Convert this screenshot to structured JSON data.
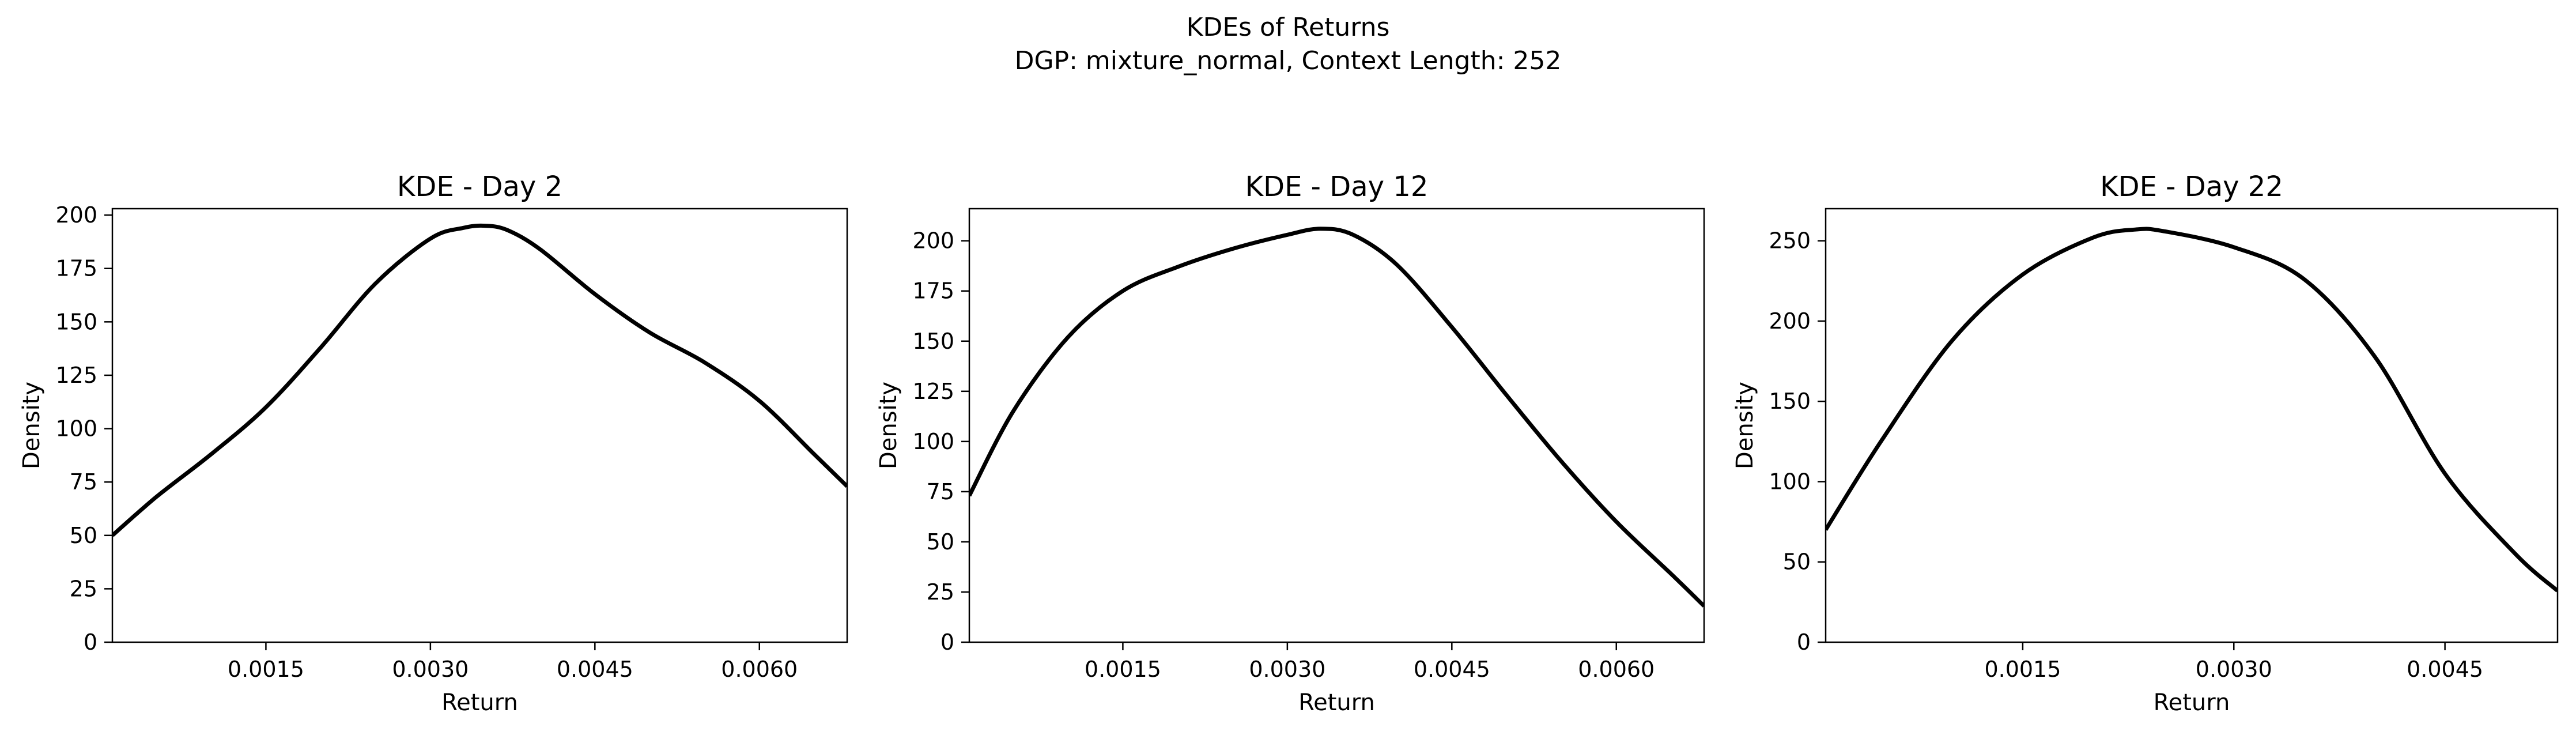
{
  "figure": {
    "title_line1": "KDEs of Returns",
    "title_line2": "DGP: mixture_normal, Context Length: 252"
  },
  "chart_data": [
    {
      "type": "line",
      "title": "KDE - Day 2",
      "xlabel": "Return",
      "ylabel": "Density",
      "xlim": [
        0.0001,
        0.0068
      ],
      "ylim": [
        0,
        203
      ],
      "xticks": [
        0.0015,
        0.003,
        0.0045,
        0.006
      ],
      "xtick_labels": [
        "0.0015",
        "0.0030",
        "0.0045",
        "0.0060"
      ],
      "yticks": [
        0,
        25,
        50,
        75,
        100,
        125,
        150,
        175,
        200
      ],
      "ytick_labels": [
        "0",
        "25",
        "50",
        "75",
        "100",
        "125",
        "150",
        "175",
        "200"
      ],
      "grid": false,
      "color": "#000000",
      "series": [
        {
          "x": [
            0.0001,
            0.0005,
            0.001,
            0.0015,
            0.002,
            0.0025,
            0.003,
            0.0033,
            0.0035,
            0.0037,
            0.004,
            0.0045,
            0.005,
            0.0055,
            0.006,
            0.0065,
            0.0068
          ],
          "y": [
            50,
            68,
            88,
            110,
            138,
            168,
            189,
            194,
            195,
            193,
            184,
            163,
            145,
            131,
            113,
            88,
            73
          ]
        }
      ]
    },
    {
      "type": "line",
      "title": "KDE - Day 12",
      "xlabel": "Return",
      "ylabel": "Density",
      "xlim": [
        0.0001,
        0.0068
      ],
      "ylim": [
        0,
        216
      ],
      "xticks": [
        0.0015,
        0.003,
        0.0045,
        0.006
      ],
      "xtick_labels": [
        "0.0015",
        "0.0030",
        "0.0045",
        "0.0060"
      ],
      "yticks": [
        0,
        25,
        50,
        75,
        100,
        125,
        150,
        175,
        200
      ],
      "ytick_labels": [
        "0",
        "25",
        "50",
        "75",
        "100",
        "125",
        "150",
        "175",
        "200"
      ],
      "grid": false,
      "color": "#000000",
      "series": [
        {
          "x": [
            0.0001,
            0.0005,
            0.001,
            0.0015,
            0.002,
            0.0025,
            0.003,
            0.0033,
            0.0036,
            0.004,
            0.0045,
            0.005,
            0.0055,
            0.006,
            0.0065,
            0.0068
          ],
          "y": [
            73,
            115,
            152,
            175,
            187,
            196,
            203,
            206,
            203,
            188,
            157,
            123,
            90,
            60,
            34,
            18
          ]
        }
      ]
    },
    {
      "type": "line",
      "title": "KDE - Day 22",
      "xlabel": "Return",
      "ylabel": "Density",
      "xlim": [
        0.0001,
        0.0053
      ],
      "ylim": [
        0,
        270
      ],
      "xticks": [
        0.0015,
        0.003,
        0.0045
      ],
      "xtick_labels": [
        "0.0015",
        "0.0030",
        "0.0045"
      ],
      "yticks": [
        0,
        50,
        100,
        150,
        200,
        250
      ],
      "ytick_labels": [
        "0",
        "50",
        "100",
        "150",
        "200",
        "250"
      ],
      "grid": false,
      "color": "#000000",
      "series": [
        {
          "x": [
            0.0001,
            0.0005,
            0.001,
            0.0015,
            0.002,
            0.0023,
            0.0025,
            0.003,
            0.0035,
            0.004,
            0.0045,
            0.005,
            0.0053
          ],
          "y": [
            70,
            126,
            188,
            229,
            252,
            257,
            256,
            246,
            226,
            178,
            105,
            55,
            32
          ]
        }
      ]
    }
  ]
}
